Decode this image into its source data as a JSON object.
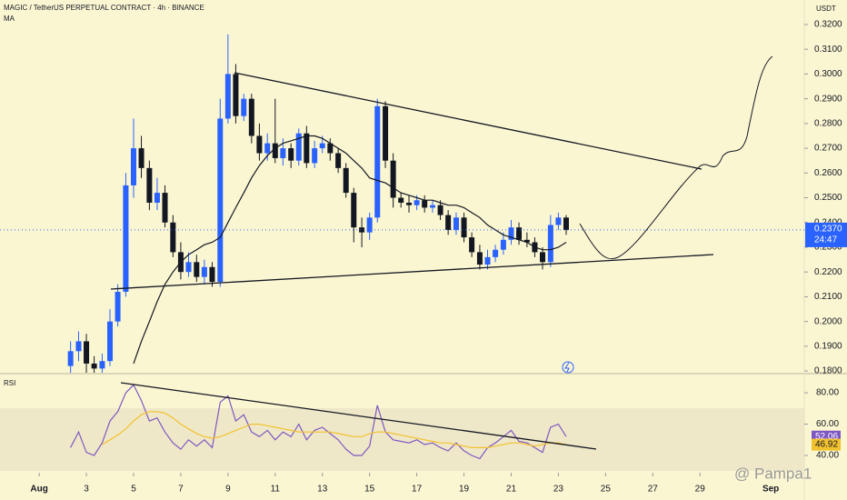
{
  "chart_data": [
    {
      "type": "candlestick",
      "title": "MAGIC / TetherUS PERPETUAL CONTRACT · 4h · BINANCE",
      "currency": "USDT",
      "countdown": "24:47",
      "last_label": "0.2370",
      "watermark": "@ Pampa1",
      "up_color": "#2962ff",
      "down_color": "#131722",
      "x": [
        2.33,
        2.67,
        3,
        3.33,
        3.67,
        4,
        4.33,
        4.67,
        5,
        5.33,
        5.67,
        6,
        6.33,
        6.67,
        7,
        7.33,
        7.67,
        8,
        8.33,
        8.67,
        9,
        9.33,
        9.67,
        10,
        10.33,
        10.67,
        11,
        11.33,
        11.67,
        12,
        12.33,
        12.67,
        13,
        13.33,
        13.67,
        14,
        14.33,
        14.67,
        15,
        15.33,
        15.67,
        16,
        16.33,
        16.67,
        17,
        17.33,
        17.67,
        18,
        18.33,
        18.67,
        19,
        19.33,
        19.67,
        20,
        20.33,
        20.67,
        21,
        21.33,
        21.67,
        22,
        22.33,
        22.67,
        23,
        23.33
      ],
      "open": [
        0.182,
        0.188,
        0.192,
        0.183,
        0.181,
        0.184,
        0.2,
        0.212,
        0.255,
        0.27,
        0.262,
        0.248,
        0.252,
        0.24,
        0.228,
        0.22,
        0.224,
        0.218,
        0.222,
        0.216,
        0.282,
        0.3,
        0.283,
        0.29,
        0.275,
        0.268,
        0.272,
        0.266,
        0.27,
        0.265,
        0.276,
        0.264,
        0.27,
        0.272,
        0.268,
        0.262,
        0.252,
        0.238,
        0.236,
        0.242,
        0.287,
        0.265,
        0.25,
        0.248,
        0.247,
        0.249,
        0.246,
        0.247,
        0.243,
        0.237,
        0.242,
        0.234,
        0.228,
        0.223,
        0.226,
        0.229,
        0.233,
        0.238,
        0.233,
        0.232,
        0.228,
        0.224,
        0.239,
        0.242
      ],
      "high": [
        0.192,
        0.196,
        0.195,
        0.186,
        0.187,
        0.205,
        0.215,
        0.26,
        0.282,
        0.275,
        0.265,
        0.258,
        0.255,
        0.243,
        0.232,
        0.228,
        0.227,
        0.225,
        0.224,
        0.29,
        0.316,
        0.304,
        0.292,
        0.292,
        0.28,
        0.276,
        0.29,
        0.274,
        0.272,
        0.278,
        0.279,
        0.273,
        0.275,
        0.274,
        0.27,
        0.264,
        0.254,
        0.242,
        0.244,
        0.29,
        0.289,
        0.268,
        0.252,
        0.251,
        0.251,
        0.251,
        0.249,
        0.249,
        0.245,
        0.244,
        0.244,
        0.236,
        0.231,
        0.229,
        0.231,
        0.236,
        0.241,
        0.24,
        0.236,
        0.234,
        0.23,
        0.243,
        0.244,
        0.243
      ],
      "low": [
        0.178,
        0.184,
        0.178,
        0.178,
        0.178,
        0.182,
        0.198,
        0.21,
        0.25,
        0.258,
        0.245,
        0.245,
        0.238,
        0.226,
        0.217,
        0.218,
        0.216,
        0.215,
        0.214,
        0.214,
        0.28,
        0.28,
        0.281,
        0.272,
        0.265,
        0.265,
        0.264,
        0.263,
        0.262,
        0.263,
        0.262,
        0.262,
        0.268,
        0.265,
        0.26,
        0.25,
        0.232,
        0.23,
        0.233,
        0.24,
        0.262,
        0.246,
        0.246,
        0.244,
        0.245,
        0.244,
        0.244,
        0.241,
        0.235,
        0.235,
        0.232,
        0.226,
        0.221,
        0.221,
        0.224,
        0.227,
        0.231,
        0.231,
        0.23,
        0.226,
        0.221,
        0.222,
        0.237,
        0.235
      ],
      "close": [
        0.188,
        0.192,
        0.183,
        0.181,
        0.184,
        0.2,
        0.212,
        0.255,
        0.27,
        0.262,
        0.248,
        0.252,
        0.24,
        0.228,
        0.22,
        0.224,
        0.218,
        0.222,
        0.216,
        0.282,
        0.3,
        0.283,
        0.29,
        0.275,
        0.268,
        0.272,
        0.266,
        0.27,
        0.265,
        0.276,
        0.264,
        0.27,
        0.272,
        0.268,
        0.262,
        0.252,
        0.238,
        0.236,
        0.242,
        0.287,
        0.265,
        0.25,
        0.248,
        0.247,
        0.249,
        0.246,
        0.247,
        0.243,
        0.237,
        0.242,
        0.234,
        0.228,
        0.223,
        0.226,
        0.229,
        0.233,
        0.238,
        0.233,
        0.232,
        0.228,
        0.224,
        0.239,
        0.242,
        0.237
      ],
      "series": [
        {
          "name": "MA",
          "color": "#131722",
          "values": [
            null,
            null,
            null,
            null,
            null,
            null,
            null,
            null,
            0.183,
            0.192,
            0.2,
            0.208,
            0.215,
            0.22,
            0.224,
            0.227,
            0.229,
            0.231,
            0.232,
            0.234,
            0.24,
            0.246,
            0.252,
            0.258,
            0.263,
            0.267,
            0.27,
            0.272,
            0.273,
            0.274,
            0.275,
            0.275,
            0.274,
            0.272,
            0.27,
            0.268,
            0.265,
            0.262,
            0.258,
            0.257,
            0.256,
            0.254,
            0.252,
            0.251,
            0.25,
            0.249,
            0.249,
            0.248,
            0.247,
            0.247,
            0.246,
            0.244,
            0.242,
            0.239,
            0.237,
            0.235,
            0.234,
            0.233,
            0.232,
            0.23,
            0.229,
            0.229,
            0.23,
            0.232
          ]
        }
      ],
      "xlim": [
        -0.66,
        33.42
      ],
      "xticks": [
        {
          "value": 1,
          "label": "Aug"
        },
        3,
        5,
        7,
        9,
        11,
        13,
        15,
        17,
        19,
        21,
        23,
        25,
        27,
        29,
        {
          "value": 32,
          "label": "Sep"
        }
      ],
      "ylim": [
        0.1793,
        0.3299
      ],
      "yticks": [
        {
          "value": 0.18,
          "label": "0.1800"
        },
        {
          "value": 0.19,
          "label": "0.1900"
        },
        {
          "value": 0.2,
          "label": "0.2000"
        },
        {
          "value": 0.21,
          "label": "0.2100"
        },
        {
          "value": 0.22,
          "label": "0.2200"
        },
        {
          "value": 0.23,
          "label": "0.2300"
        },
        {
          "value": 0.24,
          "label": "0.2400"
        },
        {
          "value": 0.25,
          "label": "0.2500"
        },
        {
          "value": 0.26,
          "label": "0.2600"
        },
        {
          "value": 0.27,
          "label": "0.2700"
        },
        {
          "value": 0.28,
          "label": "0.2800"
        },
        {
          "value": 0.29,
          "label": "0.2900"
        },
        {
          "value": 0.3,
          "label": "0.3000"
        },
        {
          "value": 0.31,
          "label": "0.3100"
        },
        {
          "value": 0.32,
          "label": "0.3200"
        }
      ]
    },
    {
      "type": "line",
      "title": "RSI",
      "series": [
        {
          "color": "#7e57c2",
          "values": [
            45,
            55,
            42,
            40,
            48,
            62,
            68,
            80,
            85,
            75,
            62,
            64,
            55,
            48,
            44,
            50,
            46,
            50,
            45,
            74,
            78,
            62,
            66,
            55,
            52,
            56,
            50,
            55,
            52,
            60,
            50,
            56,
            58,
            54,
            50,
            44,
            40,
            40,
            46,
            72,
            55,
            50,
            49,
            48,
            50,
            47,
            48,
            45,
            43,
            48,
            43,
            40,
            38,
            45,
            48,
            52,
            56,
            49,
            48,
            45,
            42,
            58,
            60,
            52.06
          ]
        },
        {
          "color": "#f2c12e",
          "values": [
            null,
            null,
            null,
            null,
            47,
            50,
            53,
            57,
            62,
            66,
            68,
            68,
            67,
            64,
            60,
            57,
            54,
            52,
            51,
            52,
            54,
            56,
            58,
            60,
            60,
            59,
            58,
            57,
            56,
            55,
            55,
            55,
            55,
            55,
            54,
            53,
            52,
            52,
            54,
            55,
            55,
            54,
            53,
            52,
            51,
            50,
            49,
            48,
            48,
            47,
            46,
            45,
            45,
            45,
            46,
            47,
            48,
            48,
            47,
            46,
            47,
            48,
            48,
            46.92
          ]
        }
      ],
      "ylim": [
        29,
        89.9
      ],
      "yticks": [
        {
          "value": 80,
          "label": "80.00"
        },
        {
          "value": 60,
          "label": "60.00"
        },
        {
          "value": 40,
          "label": "40.00"
        }
      ]
    }
  ]
}
